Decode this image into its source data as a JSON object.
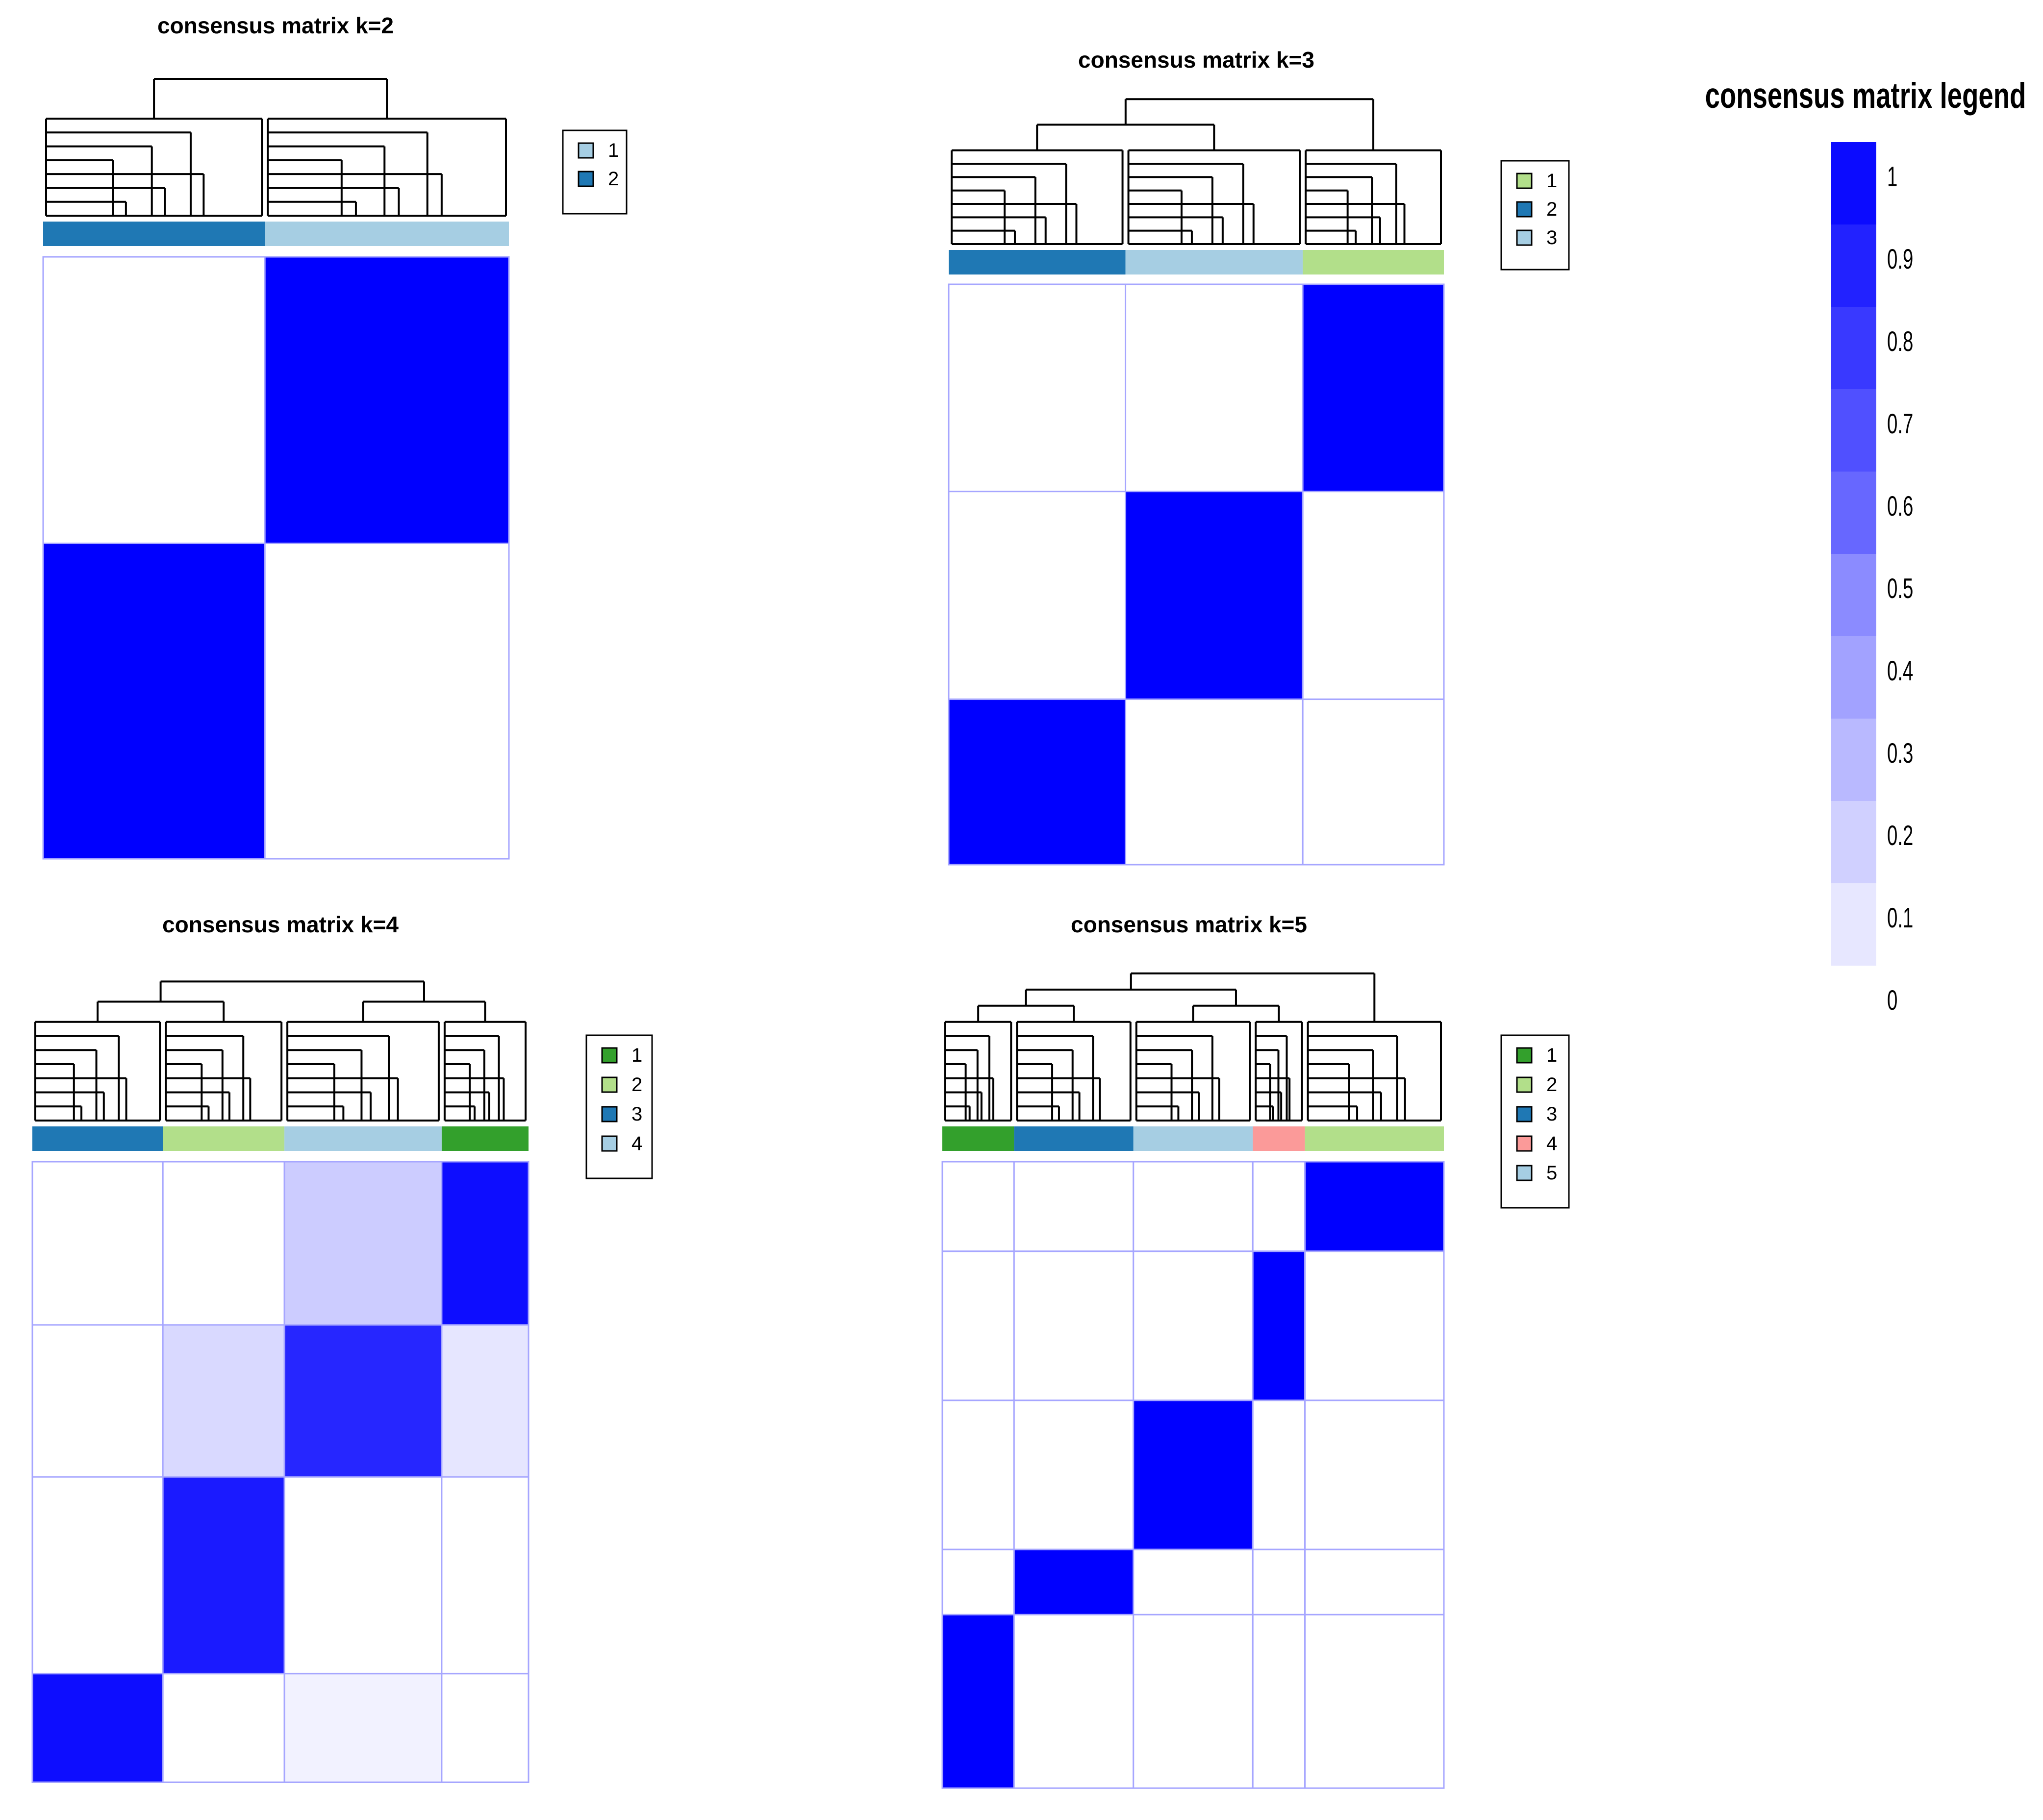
{
  "chart_data": [
    {
      "type": "heatmap",
      "title": "consensus matrix k=2",
      "k": 2,
      "legend_labels": [
        "1",
        "2"
      ],
      "legend_colors": [
        "#A6CEE3",
        "#1F78B4"
      ],
      "column_clusters": [
        2,
        1
      ],
      "column_fractions": [
        0.476,
        0.524
      ],
      "matrix": [
        [
          0,
          1
        ],
        [
          1,
          0
        ]
      ]
    },
    {
      "type": "heatmap",
      "title": "consensus matrix k=3",
      "k": 3,
      "legend_labels": [
        "1",
        "2",
        "3"
      ],
      "legend_colors": [
        "#B2DF8A",
        "#1F78B4",
        "#A6CEE3"
      ],
      "column_clusters": [
        2,
        3,
        1
      ],
      "column_fractions": [
        0.357,
        0.358,
        0.285
      ],
      "matrix": [
        [
          0,
          0,
          1
        ],
        [
          0,
          1,
          0
        ],
        [
          1,
          0,
          0
        ]
      ]
    },
    {
      "type": "heatmap",
      "title": "consensus matrix k=4",
      "k": 4,
      "legend_labels": [
        "1",
        "2",
        "3",
        "4"
      ],
      "legend_colors": [
        "#33A02C",
        "#B2DF8A",
        "#1F78B4",
        "#A6CEE3"
      ],
      "column_clusters": [
        3,
        2,
        4,
        1
      ],
      "column_fractions": [
        0.263,
        0.245,
        0.317,
        0.175
      ],
      "matrix": [
        [
          0,
          0,
          0.2,
          0.95
        ],
        [
          0,
          0.15,
          0.85,
          0.1
        ],
        [
          0,
          0.9,
          0,
          0
        ],
        [
          0.95,
          0,
          0.05,
          0
        ]
      ]
    },
    {
      "type": "heatmap",
      "title": "consensus matrix k=5",
      "k": 5,
      "legend_labels": [
        "1",
        "2",
        "3",
        "4",
        "5"
      ],
      "legend_colors": [
        "#33A02C",
        "#B2DF8A",
        "#1F78B4",
        "#FB9A99",
        "#A6CEE3"
      ],
      "column_clusters": [
        1,
        3,
        5,
        4,
        2
      ],
      "column_fractions": [
        0.143,
        0.238,
        0.238,
        0.104,
        0.277
      ],
      "matrix": [
        [
          0,
          0,
          0,
          0,
          1
        ],
        [
          0,
          0,
          0,
          1,
          0
        ],
        [
          0,
          0,
          1,
          0,
          0
        ],
        [
          0,
          1,
          0,
          0,
          0
        ],
        [
          1,
          0,
          0,
          0,
          0
        ]
      ]
    }
  ],
  "color_legend": {
    "title": "consensus matrix legend",
    "labels": [
      "1",
      "0.9",
      "0.8",
      "0.7",
      "0.6",
      "0.5",
      "0.4",
      "0.3",
      "0.2",
      "0.1",
      "0"
    ],
    "values": [
      1,
      0.9,
      0.8,
      0.7,
      0.6,
      0.5,
      0.4,
      0.3,
      0.2,
      0.1,
      0
    ],
    "low_color": "#FFFFFF",
    "high_color": "#0000FF"
  }
}
